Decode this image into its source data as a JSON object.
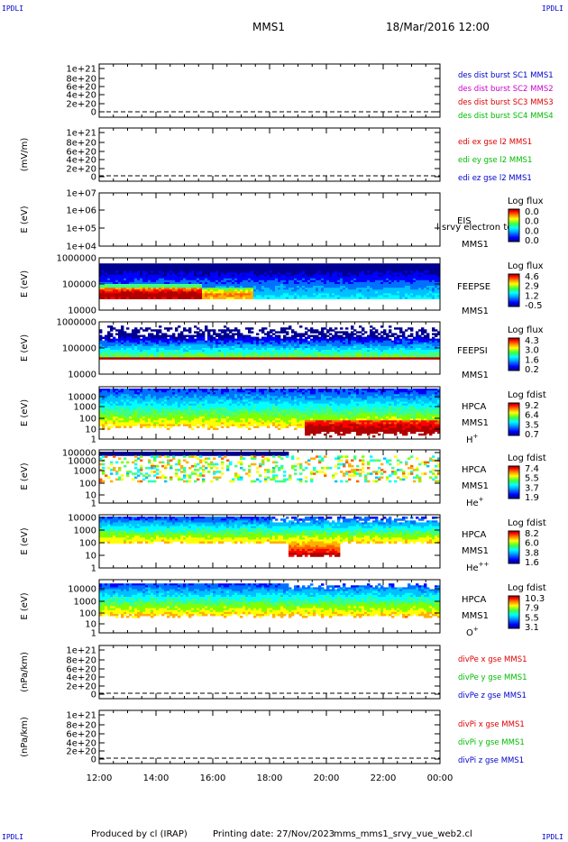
{
  "corner_label": "IPDLI",
  "header": {
    "spacecraft": "MMS1",
    "datetime": "18/Mar/2016 12:00"
  },
  "footer": {
    "produced_by": "Produced by cl (IRAP)",
    "printing_date": "Printing date: 27/Nov/2023",
    "script_name": "mms_mms1_srvy_vue_web2.cl"
  },
  "colors": {
    "black": "#000000",
    "blue": "#0000cc",
    "magenta": "#cc00cc",
    "red": "#dd0000",
    "green": "#00bb00",
    "colorbar": [
      "#000090",
      "#0000ff",
      "#00a0ff",
      "#00ffff",
      "#40ff40",
      "#ffff00",
      "#ff8000",
      "#ff0000",
      "#900000"
    ]
  },
  "chart_data": {
    "type": "heatmap",
    "time_axis": {
      "start": "12:00",
      "end": "00:00",
      "tick_labels": [
        "12:00",
        "14:00",
        "16:00",
        "18:00",
        "20:00",
        "22:00",
        "00:00"
      ]
    },
    "panels": [
      {
        "id": "des_dist",
        "kind": "empty",
        "ylabel": "",
        "yticks": [
          "1e+21",
          "8e+20",
          "6e+20",
          "4e+20",
          "2e+20",
          "0"
        ],
        "dashed_zero": true,
        "legend": [
          {
            "text": "des dist burst SC1 MMS1",
            "color": "#0000cc"
          },
          {
            "text": "des dist burst SC2 MMS2",
            "color": "#cc00cc"
          },
          {
            "text": "des dist burst SC3 MMS3",
            "color": "#dd0000"
          },
          {
            "text": "des dist burst SC4 MMS4",
            "color": "#00bb00"
          }
        ]
      },
      {
        "id": "edi_e",
        "kind": "empty",
        "ylabel": "(mV/m)",
        "yticks": [
          "1e+21",
          "8e+20",
          "6e+20",
          "4e+20",
          "2e+20",
          "0"
        ],
        "dashed_zero": true,
        "legend": [
          {
            "text": "edi ex gse l2 MMS1",
            "color": "#dd0000"
          },
          {
            "text": "edi ey gse l2 MMS1",
            "color": "#00bb00"
          },
          {
            "text": "edi ez gse l2 MMS1",
            "color": "#0000cc"
          }
        ]
      },
      {
        "id": "eis",
        "kind": "empty_log",
        "ylabel": "E (eV)",
        "yticks": [
          "1e+07",
          "1e+06",
          "1e+05",
          "1e+04"
        ],
        "right_labels": [
          "EIS",
          "MMS1"
        ],
        "overflow_text": "l srvy electron to",
        "colorbar": {
          "title": "Log flux",
          "ticks": [
            "0.0",
            "0.0",
            "0.0",
            "0.0"
          ]
        }
      },
      {
        "id": "feepse",
        "kind": "spectrogram",
        "ylabel": "E (eV)",
        "yticks": [
          "1000000",
          "100000",
          "10000"
        ],
        "right_labels": [
          "FEEPSE",
          "MMS1"
        ],
        "colorbar": {
          "title": "Log flux",
          "ticks": [
            "4.6",
            "2.9",
            "1.2",
            "-0.5"
          ]
        }
      },
      {
        "id": "feepsi",
        "kind": "spectrogram",
        "ylabel": "E (eV)",
        "yticks": [
          "1000000",
          "100000",
          "10000"
        ],
        "right_labels": [
          "FEEPSI",
          "MMS1"
        ],
        "colorbar": {
          "title": "Log flux",
          "ticks": [
            "4.3",
            "3.0",
            "1.6",
            "0.2"
          ]
        }
      },
      {
        "id": "hpca_h",
        "kind": "spectrogram",
        "ylabel": "E (eV)",
        "yticks": [
          "10000",
          "1000",
          "100",
          "10",
          "1"
        ],
        "right_labels": [
          "HPCA",
          "MMS1"
        ],
        "species": "H",
        "charge": "+",
        "colorbar": {
          "title": "Log fdist",
          "ticks": [
            "9.2",
            "6.4",
            "3.5",
            "0.7"
          ]
        }
      },
      {
        "id": "hpca_he1",
        "kind": "spectrogram",
        "ylabel": "E (eV)",
        "yticks": [
          "100000",
          "10000",
          "1000",
          "100",
          "10",
          "1"
        ],
        "right_labels": [
          "HPCA",
          "MMS1"
        ],
        "species": "He",
        "charge": "+",
        "colorbar": {
          "title": "Log fdist",
          "ticks": [
            "7.4",
            "5.5",
            "3.7",
            "1.9"
          ]
        }
      },
      {
        "id": "hpca_he2",
        "kind": "spectrogram",
        "ylabel": "E (eV)",
        "yticks": [
          "10000",
          "1000",
          "100",
          "10",
          "1"
        ],
        "right_labels": [
          "HPCA",
          "MMS1"
        ],
        "species": "He",
        "charge": "++",
        "colorbar": {
          "title": "Log fdist",
          "ticks": [
            "8.2",
            "6.0",
            "3.8",
            "1.6"
          ]
        }
      },
      {
        "id": "hpca_o",
        "kind": "spectrogram",
        "ylabel": "E (eV)",
        "yticks": [
          "10000",
          "1000",
          "100",
          "10",
          "1"
        ],
        "right_labels": [
          "HPCA",
          "MMS1"
        ],
        "species": "O",
        "charge": "+",
        "colorbar": {
          "title": "Log fdist",
          "ticks": [
            "10.3",
            "7.9",
            "5.5",
            "3.1"
          ]
        }
      },
      {
        "id": "divpe",
        "kind": "empty",
        "ylabel": "(nPa/km)",
        "yticks": [
          "1e+21",
          "8e+20",
          "6e+20",
          "4e+20",
          "2e+20",
          "0"
        ],
        "dashed_zero": true,
        "legend": [
          {
            "text": "divPe x gse MMS1",
            "color": "#dd0000"
          },
          {
            "text": "divPe y gse MMS1",
            "color": "#00bb00"
          },
          {
            "text": "divPe z gse MMS1",
            "color": "#0000cc"
          }
        ]
      },
      {
        "id": "divpi",
        "kind": "empty",
        "ylabel": "(nPa/km)",
        "yticks": [
          "1e+21",
          "8e+20",
          "6e+20",
          "4e+20",
          "2e+20",
          "0"
        ],
        "dashed_zero": true,
        "legend": [
          {
            "text": "divPi x gse MMS1",
            "color": "#dd0000"
          },
          {
            "text": "divPi y gse MMS1",
            "color": "#00bb00"
          },
          {
            "text": "divPi z gse MMS1",
            "color": "#0000cc"
          }
        ]
      }
    ]
  }
}
